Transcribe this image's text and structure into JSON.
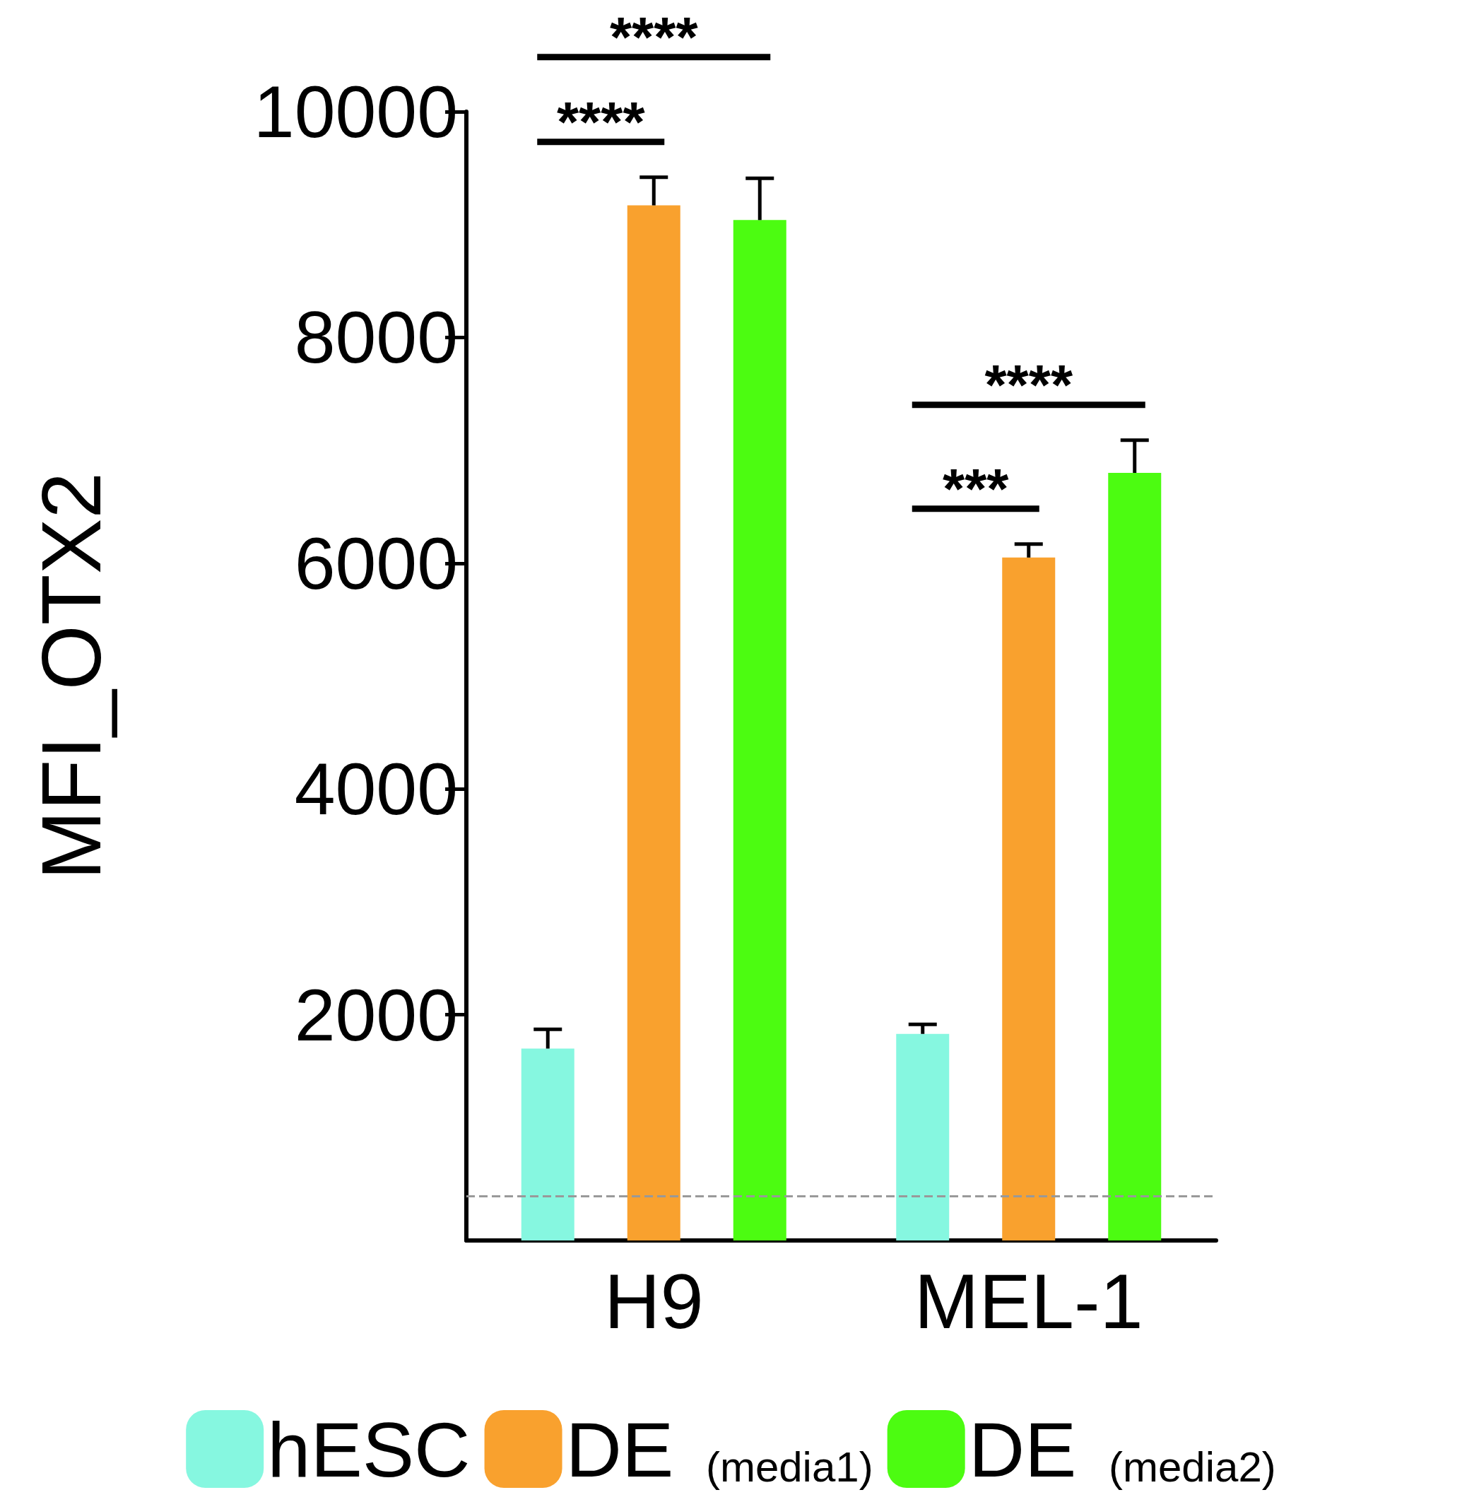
{
  "chart_data": {
    "type": "bar",
    "ylabel": "MFI_OTX2",
    "categories": [
      "H9",
      "MEL-1"
    ],
    "series": [
      {
        "name": "hESC",
        "color": "#86f7e0",
        "values": [
          1700,
          1830
        ],
        "errors": [
          [
            1700,
            1870
          ],
          [
            1830,
            1915
          ]
        ]
      },
      {
        "name": "DE $_{(media1)}$",
        "color": "#f9a12e",
        "values": [
          9170,
          6050
        ],
        "errors": [
          [
            9170,
            9420
          ],
          [
            6050,
            6170
          ]
        ]
      },
      {
        "name": "DE $_{(media2)}$",
        "color": "#4cfc11",
        "values": [
          9040,
          6800
        ],
        "errors": [
          [
            9040,
            9410
          ],
          [
            6800,
            7090
          ]
        ]
      }
    ],
    "ylim": [
      0,
      10000
    ],
    "yticks": [
      2000,
      4000,
      6000,
      8000,
      10000
    ],
    "grid": false,
    "legend": "bottom",
    "ref_lines": [
      {
        "axis": "y",
        "value": 390,
        "color": "#999999",
        "line_style": "dashed"
      }
    ],
    "annotations": [
      "****",
      "****",
      "***",
      "****"
    ]
  }
}
